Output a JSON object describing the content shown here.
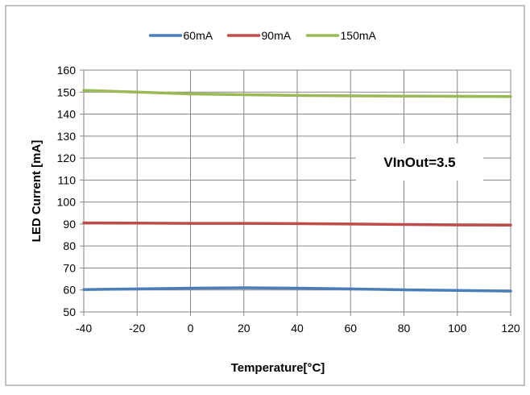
{
  "chart_data": {
    "type": "line",
    "title": "",
    "xlabel": "Temperature[°C]",
    "ylabel": "LED Current [mA]",
    "x": [
      -40,
      -20,
      0,
      20,
      40,
      60,
      80,
      100,
      120
    ],
    "xlim": [
      -40,
      120
    ],
    "ylim": [
      50,
      160
    ],
    "x_ticks": [
      "-40",
      "-20",
      "0",
      "20",
      "40",
      "60",
      "80",
      "100",
      "120"
    ],
    "y_ticks": [
      "50",
      "60",
      "70",
      "80",
      "90",
      "100",
      "110",
      "120",
      "130",
      "140",
      "150",
      "160"
    ],
    "grid": true,
    "legend_position": "top",
    "series": [
      {
        "name": "60mA",
        "color": "#4a7ebb",
        "values": [
          60.2,
          60.5,
          60.8,
          61.0,
          60.8,
          60.5,
          60.1,
          59.8,
          59.5
        ]
      },
      {
        "name": "90mA",
        "color": "#be4b48",
        "values": [
          90.5,
          90.4,
          90.3,
          90.3,
          90.2,
          90.0,
          89.8,
          89.6,
          89.5
        ]
      },
      {
        "name": "150mA",
        "color": "#98b954",
        "values": [
          150.8,
          150.0,
          149.2,
          148.8,
          148.5,
          148.3,
          148.2,
          148.1,
          148.0
        ]
      }
    ],
    "annotations": [
      {
        "text": "VInOut=3.5"
      }
    ]
  }
}
